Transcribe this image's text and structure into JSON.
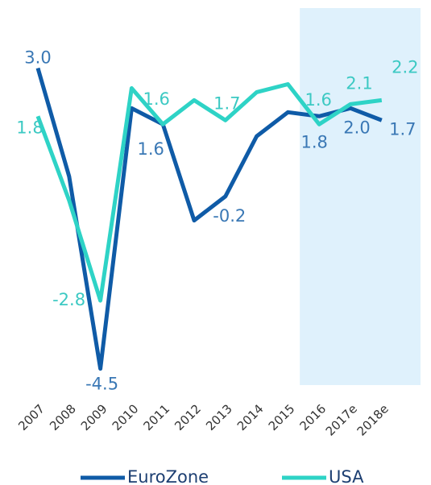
{
  "chart_data": {
    "type": "line",
    "categories": [
      "2007",
      "2008",
      "2009",
      "2010",
      "2011",
      "2012",
      "2013",
      "2014",
      "2015",
      "2016",
      "2017e",
      "2018e"
    ],
    "series": [
      {
        "name": "EuroZone",
        "color": "#0f5ba7",
        "label_color": "#3a78b5",
        "values": [
          3.0,
          0.3,
          -4.5,
          2.0,
          1.6,
          -0.8,
          -0.2,
          1.3,
          1.9,
          1.8,
          2.0,
          1.7
        ],
        "value_labels": [
          "3.0",
          null,
          "-4.5",
          null,
          "1.6",
          null,
          "-0.2",
          null,
          null,
          "1.8",
          "2.0",
          "1.7"
        ]
      },
      {
        "name": "USA",
        "color": "#2ed3c6",
        "label_color": "#3cc9c3",
        "values": [
          1.8,
          -0.3,
          -2.8,
          2.5,
          1.6,
          2.2,
          1.7,
          2.4,
          2.6,
          1.6,
          2.1,
          2.2
        ],
        "value_labels": [
          "1.8",
          null,
          "-2.8",
          null,
          "1.6",
          null,
          "1.7",
          null,
          null,
          "1.6",
          "2.1",
          "2.2"
        ]
      }
    ],
    "ylim": [
      -4.95,
      4.5
    ],
    "shade_from": "2016",
    "shade_color": "#dff1fc"
  }
}
